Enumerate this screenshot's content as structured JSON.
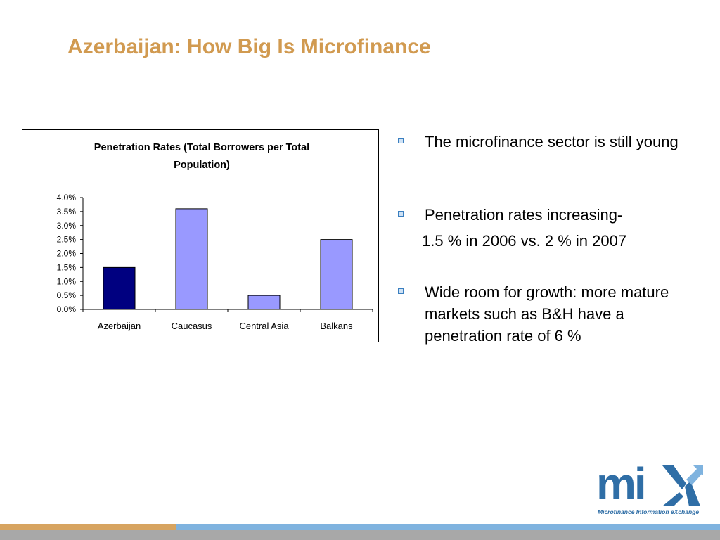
{
  "slide": {
    "title": "Azerbaijan: How Big Is Microfinance"
  },
  "bullets": [
    {
      "text": "The microfinance sector is still young"
    },
    {
      "text": "Penetration rates increasing-",
      "continuation": "1.5 % in 2006 vs. 2 % in 2007"
    },
    {
      "text": "Wide room for growth: more mature markets such as B&H have a penetration rate of 6 %"
    }
  ],
  "logo": {
    "word": "mi",
    "tagline": "Microfinance Information eXchange"
  },
  "colors": {
    "title": "#d19a50",
    "bar_highlight": "#000080",
    "bar_default": "#9999ff",
    "bullet_marker": "#3a7fc0",
    "logo": "#2f6ea6",
    "footer_left": "#d7a460",
    "footer_right": "#7fb3df"
  },
  "chart_data": {
    "type": "bar",
    "title_lines": [
      "Penetration Rates (Total Borrowers per Total",
      "Population)"
    ],
    "categories": [
      "Azerbaijan",
      "Caucasus",
      "Central Asia",
      "Balkans"
    ],
    "values": [
      1.5,
      3.6,
      0.5,
      2.5
    ],
    "unit": "%",
    "yticks": [
      "0.0%",
      "0.5%",
      "1.0%",
      "1.5%",
      "2.0%",
      "2.5%",
      "3.0%",
      "3.5%",
      "4.0%"
    ],
    "ylim": [
      0,
      4
    ],
    "grid": false,
    "legend": "none",
    "highlight_index": 0
  }
}
